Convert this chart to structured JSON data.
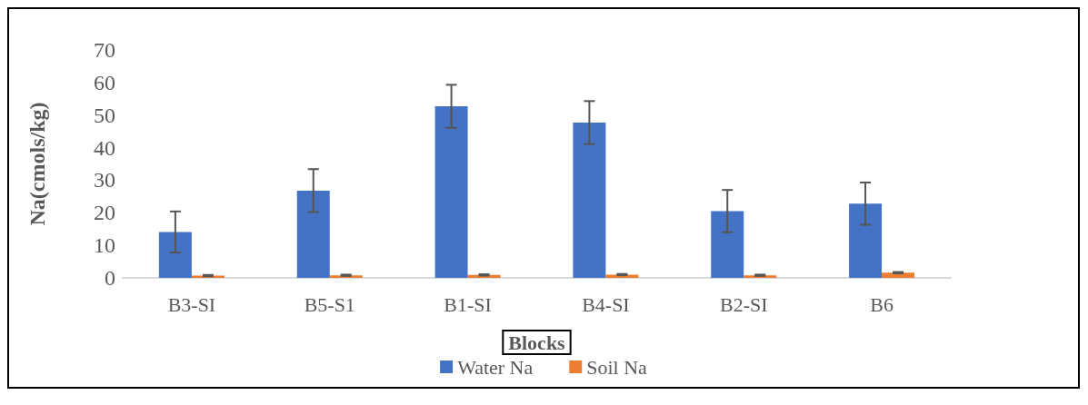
{
  "chart_data": {
    "type": "bar",
    "xlabel": "Blocks",
    "ylabel": "Na(cmols/kg)",
    "categories": [
      "B3-SI",
      "B5-S1",
      "B1-SI",
      "B4-SI",
      "B2-SI",
      "B6"
    ],
    "series": [
      {
        "name": "Water Na",
        "color": "#4472c4",
        "values": [
          14.1,
          26.8,
          52.7,
          47.7,
          20.5,
          22.8
        ],
        "errors": [
          6.3,
          6.6,
          6.6,
          6.6,
          6.5,
          6.5
        ]
      },
      {
        "name": "Soil Na",
        "color": "#ed7d31",
        "values": [
          0.7,
          0.8,
          0.9,
          1.0,
          0.8,
          1.6
        ],
        "errors": [
          0.2,
          0.2,
          0.2,
          0.2,
          0.2,
          0.2
        ]
      }
    ],
    "ylim": [
      0,
      70
    ],
    "yticks": [
      0,
      10,
      20,
      30,
      40,
      50,
      60,
      70
    ],
    "grid": false,
    "legend": "bottom"
  }
}
